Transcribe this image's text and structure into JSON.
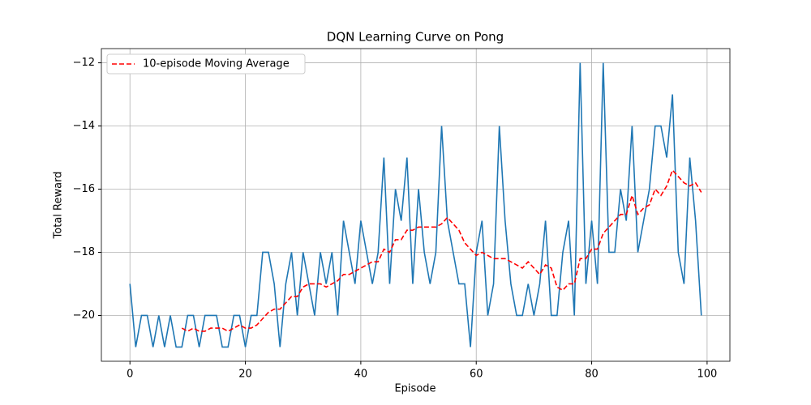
{
  "chart_data": {
    "type": "line",
    "title": "DQN Learning Curve on Pong",
    "x_label": "Episode",
    "y_label": "Total Reward",
    "xlim": [
      -4.95,
      103.95
    ],
    "ylim": [
      -21.45,
      -11.55
    ],
    "xticks": [
      0,
      20,
      40,
      60,
      80,
      100
    ],
    "yticks": [
      {
        "value": -20,
        "label": "−20"
      },
      {
        "value": -18,
        "label": "−18"
      },
      {
        "value": -16,
        "label": "−16"
      },
      {
        "value": -14,
        "label": "−14"
      },
      {
        "value": -12,
        "label": "−12"
      }
    ],
    "grid": true,
    "legend": "upper left",
    "series": [
      {
        "color": "#1f77b4",
        "style": "solid",
        "x": [
          0,
          1,
          2,
          3,
          4,
          5,
          6,
          7,
          8,
          9,
          10,
          11,
          12,
          13,
          14,
          15,
          16,
          17,
          18,
          19,
          20,
          21,
          22,
          23,
          24,
          25,
          26,
          27,
          28,
          29,
          30,
          31,
          32,
          33,
          34,
          35,
          36,
          37,
          38,
          39,
          40,
          41,
          42,
          43,
          44,
          45,
          46,
          47,
          48,
          49,
          50,
          51,
          52,
          53,
          54,
          55,
          56,
          57,
          58,
          59,
          60,
          61,
          62,
          63,
          64,
          65,
          66,
          67,
          68,
          69,
          70,
          71,
          72,
          73,
          74,
          75,
          76,
          77,
          78,
          79,
          80,
          81,
          82,
          83,
          84,
          85,
          86,
          87,
          88,
          89,
          90,
          91,
          92,
          93,
          94,
          95,
          96,
          97,
          98,
          99
        ],
        "values": [
          -19,
          -21,
          -20,
          -20,
          -21,
          -20,
          -21,
          -20,
          -21,
          -21,
          -20,
          -20,
          -21,
          -20,
          -20,
          -20,
          -21,
          -21,
          -20,
          -20,
          -21,
          -20,
          -20,
          -18,
          -18,
          -19,
          -21,
          -19,
          -18,
          -20,
          -18,
          -19,
          -20,
          -18,
          -19,
          -18,
          -20,
          -17,
          -18,
          -19,
          -17,
          -18,
          -19,
          -18,
          -15,
          -19,
          -16,
          -17,
          -15,
          -19,
          -16,
          -18,
          -19,
          -18,
          -14,
          -17,
          -18,
          -19,
          -19,
          -21,
          -18,
          -17,
          -20,
          -19,
          -14,
          -17,
          -19,
          -20,
          -20,
          -19,
          -20,
          -19,
          -17,
          -20,
          -20,
          -18,
          -17,
          -20,
          -12,
          -19,
          -17,
          -19,
          -12,
          -18,
          -18,
          -16,
          -17,
          -14,
          -18,
          -17,
          -16,
          -14,
          -14,
          -15,
          -13,
          -18,
          -19,
          -15,
          -17,
          -20
        ]
      },
      {
        "name": "10-episode Moving Average",
        "color": "#ff0000",
        "style": "dashed",
        "x": [
          9,
          10,
          11,
          12,
          13,
          14,
          15,
          16,
          17,
          18,
          19,
          20,
          21,
          22,
          23,
          24,
          25,
          26,
          27,
          28,
          29,
          30,
          31,
          32,
          33,
          34,
          35,
          36,
          37,
          38,
          39,
          40,
          41,
          42,
          43,
          44,
          45,
          46,
          47,
          48,
          49,
          50,
          51,
          52,
          53,
          54,
          55,
          56,
          57,
          58,
          59,
          60,
          61,
          62,
          63,
          64,
          65,
          66,
          67,
          68,
          69,
          70,
          71,
          72,
          73,
          74,
          75,
          76,
          77,
          78,
          79,
          80,
          81,
          82,
          83,
          84,
          85,
          86,
          87,
          88,
          89,
          90,
          91,
          92,
          93,
          94,
          95,
          96,
          97,
          98,
          99
        ],
        "values": [
          -20.4,
          -20.5,
          -20.4,
          -20.5,
          -20.5,
          -20.4,
          -20.4,
          -20.4,
          -20.5,
          -20.4,
          -20.3,
          -20.4,
          -20.4,
          -20.3,
          -20.1,
          -19.9,
          -19.8,
          -19.8,
          -19.6,
          -19.4,
          -19.4,
          -19.1,
          -19.0,
          -19.0,
          -19.0,
          -19.1,
          -19.0,
          -18.9,
          -18.7,
          -18.7,
          -18.6,
          -18.5,
          -18.4,
          -18.3,
          -18.3,
          -17.9,
          -18.0,
          -17.6,
          -17.6,
          -17.3,
          -17.3,
          -17.2,
          -17.2,
          -17.2,
          -17.2,
          -17.1,
          -16.9,
          -17.1,
          -17.3,
          -17.7,
          -17.9,
          -18.1,
          -18.0,
          -18.1,
          -18.2,
          -18.2,
          -18.2,
          -18.3,
          -18.4,
          -18.5,
          -18.3,
          -18.5,
          -18.7,
          -18.4,
          -18.5,
          -19.1,
          -19.2,
          -19.0,
          -19.0,
          -18.2,
          -18.2,
          -17.9,
          -17.9,
          -17.4,
          -17.2,
          -17.0,
          -16.8,
          -16.8,
          -16.2,
          -16.8,
          -16.6,
          -16.5,
          -16.0,
          -16.2,
          -15.9,
          -15.4,
          -15.6,
          -15.8,
          -15.9,
          -15.8,
          -16.1
        ]
      }
    ]
  }
}
